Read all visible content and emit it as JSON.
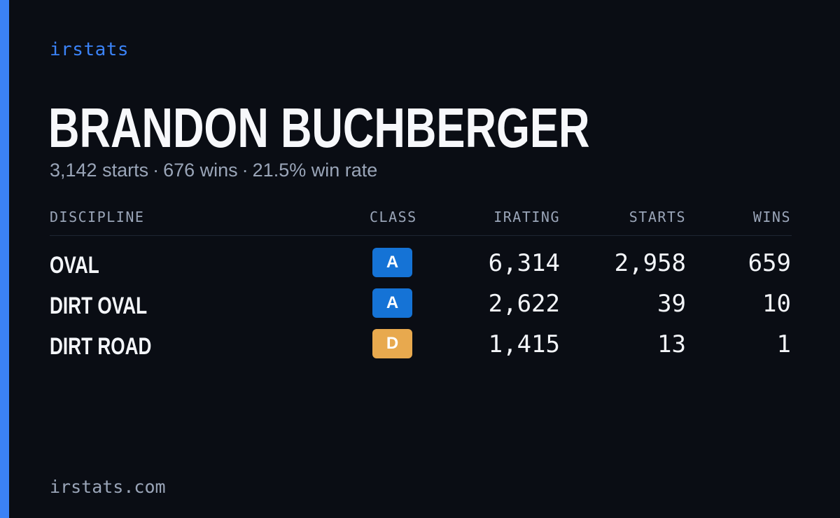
{
  "brand": "irstats",
  "driver": {
    "name": "BRANDON BUCHBERGER",
    "starts": "3,142 starts",
    "wins": "676 wins",
    "win_rate": "21.5% win rate",
    "separator": "·"
  },
  "table": {
    "headers": {
      "discipline": "DISCIPLINE",
      "class": "CLASS",
      "irating": "IRATING",
      "starts": "STARTS",
      "wins": "WINS"
    },
    "rows": [
      {
        "discipline": "OVAL",
        "class": "A",
        "class_color": "#1573d6",
        "irating": "6,314",
        "starts": "2,958",
        "wins": "659"
      },
      {
        "discipline": "DIRT OVAL",
        "class": "A",
        "class_color": "#1573d6",
        "irating": "2,622",
        "starts": "39",
        "wins": "10"
      },
      {
        "discipline": "DIRT ROAD",
        "class": "D",
        "class_color": "#e8a94e",
        "irating": "1,415",
        "starts": "13",
        "wins": "1"
      }
    ]
  },
  "footer": "irstats.com",
  "colors": {
    "background": "#0a0d14",
    "accent": "#3b82f6",
    "muted_text": "#9aa5b8"
  }
}
